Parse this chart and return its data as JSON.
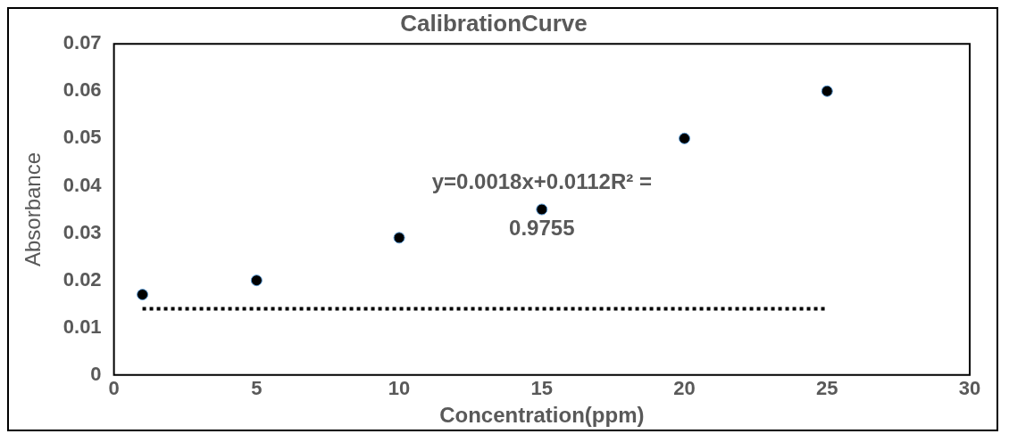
{
  "chart_data": {
    "type": "scatter",
    "title": "CalibrationCurve",
    "xlabel": "Concentration(ppm)",
    "ylabel": "Absorbance",
    "x": [
      1,
      5,
      10,
      15,
      20,
      25
    ],
    "series": [
      {
        "color": "#000000",
        "values": [
          0.017,
          0.02,
          0.029,
          0.035,
          0.05,
          0.06
        ],
        "marker": "circle"
      },
      {
        "type": "line",
        "color": "#000000",
        "x": [
          1,
          25
        ],
        "values": [
          0.014,
          0.014
        ],
        "line_style": "dotted",
        "marker": "none"
      }
    ],
    "xlim": [
      0,
      30
    ],
    "xticks": [
      0,
      5,
      10,
      15,
      20,
      25,
      30
    ],
    "ylim": [
      0,
      0.07
    ],
    "yticks": [
      0,
      0.01,
      0.02,
      0.03,
      0.04,
      0.05,
      0.06,
      0.07
    ],
    "grid": false,
    "legend": false,
    "annotations": [
      {
        "text": "y=0.0018x+0.0112R² = 0.9755",
        "x": 15,
        "y": 0.035
      }
    ]
  }
}
